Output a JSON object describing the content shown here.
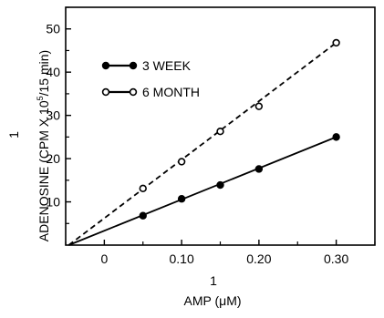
{
  "chart_data": {
    "type": "line",
    "title": "",
    "xlabel_numerator": "1",
    "xlabel_denominator": "AMP (μM)",
    "ylabel_numerator": "1",
    "ylabel_denominator_prefix": "ADENOSINE (CPM X 10",
    "ylabel_superscript": "5",
    "ylabel_denominator_suffix": "/15 min)",
    "xlim": [
      -0.05,
      0.35
    ],
    "ylim": [
      0,
      55
    ],
    "x_ticks": [
      0,
      0.1,
      0.2,
      0.3
    ],
    "x_tick_labels": [
      "0",
      "0.10",
      "0.20",
      "0.30"
    ],
    "y_ticks": [
      10,
      20,
      30,
      40,
      50
    ],
    "y_tick_labels": [
      "10",
      "20",
      "30",
      "40",
      "50"
    ],
    "grid": false,
    "legend_position": "upper-left",
    "series": [
      {
        "name": "3 WEEK",
        "marker": "filled-circle",
        "line": "solid",
        "x": [
          0.05,
          0.1,
          0.15,
          0.2,
          0.3
        ],
        "y": [
          6.8,
          10.7,
          13.9,
          17.6,
          25.0
        ],
        "fit_line": {
          "x": [
            -0.046,
            0.3
          ],
          "y": [
            0,
            25.0
          ]
        }
      },
      {
        "name": "6 MONTH",
        "marker": "open-circle",
        "line": "dashed",
        "x": [
          0.05,
          0.1,
          0.15,
          0.2,
          0.3
        ],
        "y": [
          13.1,
          19.3,
          26.3,
          32.1,
          46.8
        ],
        "fit_line": {
          "x": [
            -0.046,
            0.3
          ],
          "y": [
            0,
            46.8
          ]
        }
      }
    ]
  }
}
